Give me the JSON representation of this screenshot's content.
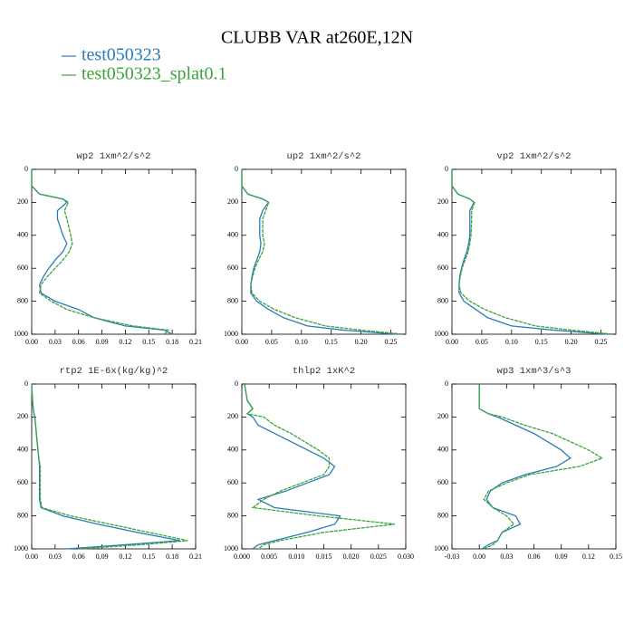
{
  "title": "CLUBB VAR at260E,12N",
  "legend": [
    {
      "name": "test050323",
      "color": "#2b7bb9"
    },
    {
      "name": "test050323_splat0.1",
      "color": "#3aa537"
    }
  ],
  "chart_data": [
    {
      "type": "line",
      "title": "wp2  1xm^2/s^2",
      "y": [
        0,
        100,
        150,
        180,
        200,
        250,
        300,
        400,
        450,
        500,
        550,
        600,
        650,
        700,
        750,
        800,
        850,
        900,
        950,
        975,
        1000
      ],
      "series": [
        {
          "color": "#2b7bb9",
          "values": [
            0,
            0,
            0.01,
            0.04,
            0.045,
            0.033,
            0.033,
            0.04,
            0.045,
            0.04,
            0.03,
            0.022,
            0.015,
            0.01,
            0.012,
            0.03,
            0.06,
            0.08,
            0.12,
            0.17,
            0.18
          ]
        },
        {
          "color": "#3aa537",
          "values": [
            0,
            0,
            0.01,
            0.04,
            0.047,
            0.042,
            0.045,
            0.05,
            0.052,
            0.048,
            0.04,
            0.03,
            0.02,
            0.012,
            0.01,
            0.025,
            0.045,
            0.08,
            0.13,
            0.175,
            0.17
          ]
        }
      ],
      "xlim": [
        0,
        0.21
      ],
      "xticks": [
        {
          "value": 0,
          "label": "0.00"
        },
        0.03,
        0.06,
        0.09,
        0.12,
        0.15,
        0.18,
        0.21
      ],
      "ylim": [
        0,
        1000
      ],
      "yticks": [
        0,
        200,
        400,
        600,
        800,
        1000
      ],
      "y_inverted": true
    },
    {
      "type": "line",
      "title": "up2  1xm^2/s^2",
      "y": [
        0,
        100,
        150,
        180,
        200,
        250,
        300,
        400,
        450,
        500,
        550,
        600,
        650,
        700,
        750,
        800,
        850,
        900,
        950,
        975,
        1000
      ],
      "series": [
        {
          "color": "#2b7bb9",
          "values": [
            0,
            0,
            0.01,
            0.035,
            0.045,
            0.035,
            0.03,
            0.03,
            0.032,
            0.03,
            0.025,
            0.02,
            0.017,
            0.015,
            0.015,
            0.025,
            0.045,
            0.07,
            0.11,
            0.17,
            0.26
          ]
        },
        {
          "color": "#3aa537",
          "values": [
            0,
            0,
            0.01,
            0.035,
            0.045,
            0.04,
            0.035,
            0.035,
            0.038,
            0.035,
            0.028,
            0.022,
            0.018,
            0.015,
            0.017,
            0.03,
            0.055,
            0.09,
            0.14,
            0.2,
            0.27
          ]
        }
      ],
      "xlim": [
        0,
        0.275
      ],
      "xticks": [
        {
          "value": 0,
          "label": "0.00"
        },
        0.05,
        {
          "value": 0.1,
          "label": "0.10"
        },
        0.15,
        {
          "value": 0.2,
          "label": "0.20"
        },
        0.25
      ],
      "ylim": [
        0,
        1000
      ],
      "yticks": [
        0,
        200,
        400,
        600,
        800,
        1000
      ],
      "y_inverted": true
    },
    {
      "type": "line",
      "title": "vp2  1xm^2/s^2",
      "y": [
        0,
        100,
        150,
        180,
        200,
        250,
        300,
        400,
        450,
        500,
        550,
        600,
        650,
        700,
        750,
        800,
        850,
        900,
        950,
        975,
        1000
      ],
      "series": [
        {
          "color": "#2b7bb9",
          "values": [
            0,
            0,
            0.01,
            0.03,
            0.037,
            0.03,
            0.03,
            0.03,
            0.028,
            0.025,
            0.02,
            0.016,
            0.013,
            0.012,
            0.012,
            0.02,
            0.04,
            0.06,
            0.1,
            0.17,
            0.26
          ]
        },
        {
          "color": "#3aa537",
          "values": [
            0,
            0,
            0.01,
            0.03,
            0.038,
            0.033,
            0.033,
            0.032,
            0.03,
            0.027,
            0.022,
            0.017,
            0.014,
            0.012,
            0.015,
            0.03,
            0.055,
            0.09,
            0.14,
            0.2,
            0.27
          ]
        }
      ],
      "xlim": [
        0,
        0.275
      ],
      "xticks": [
        {
          "value": 0,
          "label": "0.00"
        },
        0.05,
        {
          "value": 0.1,
          "label": "0.10"
        },
        0.15,
        {
          "value": 0.2,
          "label": "0.20"
        },
        0.25
      ],
      "ylim": [
        0,
        1000
      ],
      "yticks": [
        0,
        200,
        400,
        600,
        800,
        1000
      ],
      "y_inverted": true
    },
    {
      "type": "line",
      "title": "rtp2  1E-6x(kg/kg)^2",
      "y": [
        0,
        100,
        150,
        180,
        200,
        250,
        300,
        400,
        450,
        500,
        550,
        600,
        650,
        700,
        750,
        800,
        850,
        900,
        950,
        975,
        1000
      ],
      "series": [
        {
          "color": "#2b7bb9",
          "values": [
            0,
            0.001,
            0.002,
            0.003,
            0.004,
            0.005,
            0.006,
            0.008,
            0.009,
            0.01,
            0.01,
            0.01,
            0.01,
            0.01,
            0.012,
            0.04,
            0.085,
            0.135,
            0.19,
            0.12,
            0.045
          ]
        },
        {
          "color": "#3aa537",
          "values": [
            0,
            0.001,
            0.002,
            0.003,
            0.004,
            0.005,
            0.006,
            0.008,
            0.009,
            0.011,
            0.011,
            0.011,
            0.011,
            0.011,
            0.013,
            0.05,
            0.1,
            0.15,
            0.2,
            0.14,
            0.06
          ]
        }
      ],
      "xlim": [
        0,
        0.21
      ],
      "xticks": [
        {
          "value": 0,
          "label": "0.00"
        },
        0.03,
        0.06,
        0.09,
        0.12,
        0.15,
        0.18,
        0.21
      ],
      "ylim": [
        0,
        1000
      ],
      "yticks": [
        0,
        200,
        400,
        600,
        800,
        1000
      ],
      "y_inverted": true
    },
    {
      "type": "line",
      "title": "thlp2  1xK^2",
      "y": [
        0,
        100,
        150,
        180,
        200,
        250,
        300,
        400,
        450,
        500,
        550,
        600,
        650,
        700,
        750,
        800,
        850,
        900,
        950,
        975,
        1000
      ],
      "series": [
        {
          "color": "#2b7bb9",
          "values": [
            0.0005,
            0.001,
            0.002,
            0.001,
            0.002,
            0.003,
            0.006,
            0.012,
            0.015,
            0.017,
            0.016,
            0.012,
            0.008,
            0.003,
            0.006,
            0.018,
            0.017,
            0.012,
            0.006,
            0.003,
            0.002
          ]
        },
        {
          "color": "#3aa537",
          "values": [
            0.0005,
            0.001,
            0.002,
            0.001,
            0.004,
            0.006,
            0.009,
            0.014,
            0.016,
            0.016,
            0.015,
            0.011,
            0.007,
            0.004,
            0.002,
            0.014,
            0.028,
            0.015,
            0.007,
            0.004,
            0.003
          ]
        }
      ],
      "xlim": [
        0,
        0.03
      ],
      "xticks": [
        {
          "value": 0,
          "label": "0.000"
        },
        0.005,
        {
          "value": 0.01,
          "label": "0.010"
        },
        0.015,
        {
          "value": 0.02,
          "label": "0.020"
        },
        0.025,
        {
          "value": 0.03,
          "label": "0.030"
        }
      ],
      "ylim": [
        0,
        1000
      ],
      "yticks": [
        0,
        200,
        400,
        600,
        800,
        1000
      ],
      "y_inverted": true
    },
    {
      "type": "line",
      "title": "wp3  1xm^3/s^3",
      "y": [
        0,
        100,
        150,
        180,
        200,
        250,
        300,
        400,
        450,
        500,
        550,
        600,
        650,
        700,
        750,
        800,
        850,
        900,
        950,
        975,
        1000
      ],
      "series": [
        {
          "color": "#2b7bb9",
          "values": [
            0,
            0,
            0,
            0.01,
            0.02,
            0.04,
            0.06,
            0.09,
            0.1,
            0.085,
            0.05,
            0.025,
            0.012,
            0.008,
            0.015,
            0.04,
            0.045,
            0.025,
            0.02,
            0.01,
            0.003
          ]
        },
        {
          "color": "#3aa537",
          "values": [
            0,
            0,
            0,
            0.01,
            0.025,
            0.05,
            0.08,
            0.12,
            0.135,
            0.11,
            0.055,
            0.03,
            0.01,
            0.005,
            0.015,
            0.03,
            0.038,
            0.025,
            0.02,
            0.015,
            0.005
          ]
        }
      ],
      "xlim": [
        -0.03,
        0.15
      ],
      "xticks": [
        -0.03,
        {
          "value": 0,
          "label": "0.00"
        },
        0.03,
        0.06,
        0.09,
        0.12,
        0.15
      ],
      "ylim": [
        0,
        1000
      ],
      "yticks": [
        0,
        200,
        400,
        600,
        800,
        1000
      ],
      "y_inverted": true
    }
  ]
}
